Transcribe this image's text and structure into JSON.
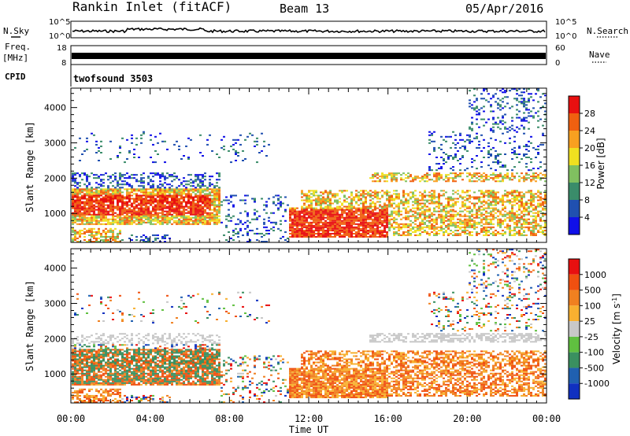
{
  "header": {
    "station": "Rankin Inlet (fitACF)",
    "beam": "Beam 13",
    "date": "05/Apr/2016"
  },
  "left_labels": {
    "nsky": "N.Sky",
    "freq": "Freq.",
    "mhz": "[MHz]",
    "cpid": "CPID"
  },
  "right_labels": {
    "nsearch": "N.Search",
    "nave": "Nave"
  },
  "cpid_text": "twofsound 3503",
  "chart_data": [
    {
      "type": "line",
      "name": "noise-panel",
      "left_ticks": [
        "10^5",
        "10^0"
      ],
      "right_ticks": [
        "10^5",
        "10^0"
      ],
      "level": 0.4
    },
    {
      "type": "line",
      "name": "freq-panel",
      "left_ticks": [
        "18",
        "8"
      ],
      "right_ticks": [
        "60",
        "0"
      ],
      "level": 0.45
    },
    {
      "type": "heatmap",
      "name": "power",
      "ylabel": "Slant Range [km]",
      "yticks": [
        1000,
        2000,
        3000,
        4000
      ],
      "ylim": [
        180,
        4550
      ],
      "xlim": [
        0,
        24
      ],
      "colorbar_title": "Power [dB]",
      "colorbar_ticks": [
        "4",
        "8",
        "12",
        "16",
        "20",
        "24",
        "28"
      ],
      "colors": [
        "#1010e8",
        "#2050b0",
        "#3a8c6a",
        "#80c060",
        "#f0e020",
        "#f8a020",
        "#f06010",
        "#e81010"
      ]
    },
    {
      "type": "heatmap",
      "name": "velocity",
      "ylabel": "Slant Range [km]",
      "yticks": [
        1000,
        2000,
        3000,
        4000
      ],
      "ylim": [
        180,
        4550
      ],
      "xlim": [
        0,
        24
      ],
      "xticks": [
        "00:00",
        "04:00",
        "08:00",
        "12:00",
        "16:00",
        "20:00",
        "00:00"
      ],
      "xlabel": "Time UT",
      "colorbar_title": "Velocity [m s",
      "colorbar_title_sup": "-1",
      "colorbar_title_end": "]",
      "colorbar_ticks": [
        "1000",
        "500",
        "100",
        "25",
        "-25",
        "-100",
        "-500",
        "-1000"
      ],
      "colors": [
        "#1030c0",
        "#2060b0",
        "#3a9060",
        "#60c040",
        "#c8c8c8",
        "#f8b030",
        "#f08020",
        "#f05010",
        "#e81010"
      ]
    }
  ]
}
